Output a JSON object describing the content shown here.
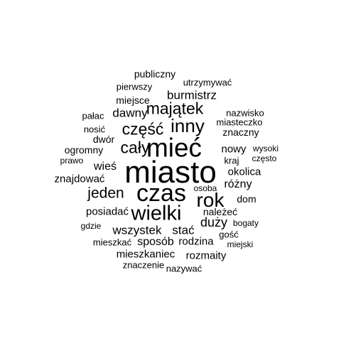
{
  "colors": {
    "background": "#ffffff",
    "text": "#000000"
  },
  "words": [
    {
      "text": "publiczny"
    },
    {
      "text": "utrzymywać"
    },
    {
      "text": "pierwszy"
    },
    {
      "text": "burmistrz"
    },
    {
      "text": "miejsce"
    },
    {
      "text": "majątek"
    },
    {
      "text": "dawny"
    },
    {
      "text": "nazwisko"
    },
    {
      "text": "pałac"
    },
    {
      "text": "miasteczko"
    },
    {
      "text": "inny"
    },
    {
      "text": "część"
    },
    {
      "text": "nosić"
    },
    {
      "text": "znaczny"
    },
    {
      "text": "dwór"
    },
    {
      "text": "mieć"
    },
    {
      "text": "cały"
    },
    {
      "text": "nowy"
    },
    {
      "text": "ogromny"
    },
    {
      "text": "wysoki"
    },
    {
      "text": "prawo"
    },
    {
      "text": "kraj"
    },
    {
      "text": "często"
    },
    {
      "text": "wieś"
    },
    {
      "text": "miasto"
    },
    {
      "text": "okolica"
    },
    {
      "text": "znajdować"
    },
    {
      "text": "różny"
    },
    {
      "text": "czas"
    },
    {
      "text": "osoba"
    },
    {
      "text": "jeden"
    },
    {
      "text": "rok"
    },
    {
      "text": "dom"
    },
    {
      "text": "posiadać"
    },
    {
      "text": "wielki"
    },
    {
      "text": "należeć"
    },
    {
      "text": "duży"
    },
    {
      "text": "bogaty"
    },
    {
      "text": "gdzie"
    },
    {
      "text": "wszystek"
    },
    {
      "text": "stać"
    },
    {
      "text": "gość"
    },
    {
      "text": "mieszkać"
    },
    {
      "text": "sposób"
    },
    {
      "text": "rodzina"
    },
    {
      "text": "miejski"
    },
    {
      "text": "mieszkaniec"
    },
    {
      "text": "rozmaity"
    },
    {
      "text": "znaczenie"
    },
    {
      "text": "nazywać"
    }
  ]
}
